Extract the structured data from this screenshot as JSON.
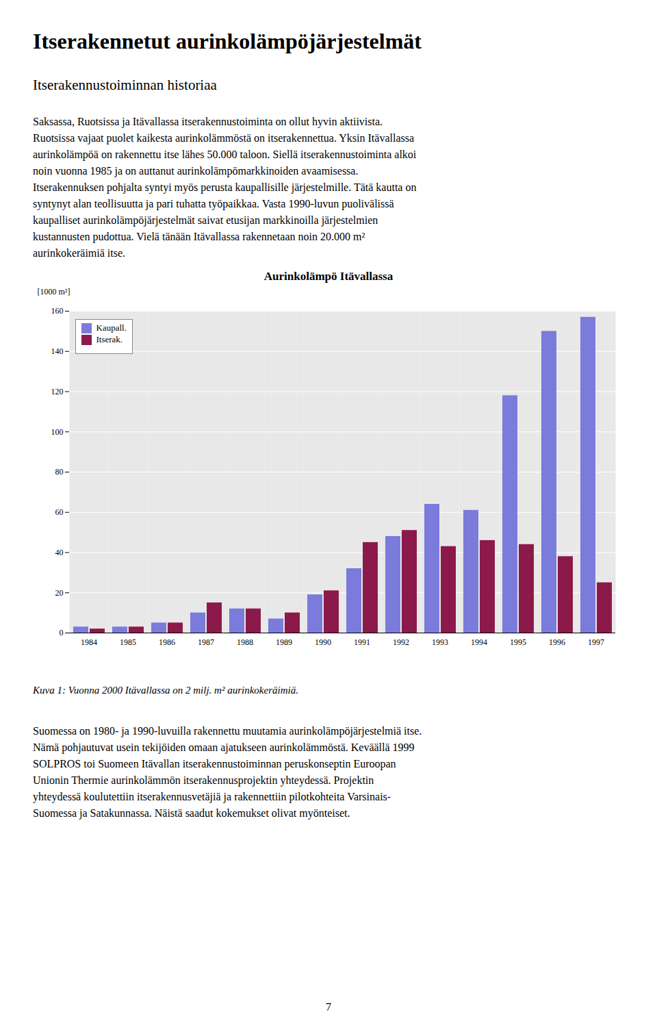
{
  "title": "Itserakennetut aurinkolämpöjärjestelmät",
  "subtitle": "Itserakennustoiminnan historiaa",
  "paragraph_before": [
    "Saksassa, Ruotsissa ja Itävallassa itserakennustoiminta on ollut hyvin aktiivista.",
    "Ruotsissa vajaat puolet kaikesta aurinkolämmöstä on itserakennettua. Yksin Itävallassa",
    "aurinkolämpöä on rakennettu itse lähes 50.000 taloon. Siellä itserakennustoiminta alkoi",
    "noin vuonna 1985 ja on auttanut aurinkolämpömarkkinoiden avaamisessa.",
    "Itserakennuksen pohjalta syntyi myös perusta kaupallisille järjestelmille. Tätä kautta on",
    "syntynyt alan teollisuutta ja pari tuhatta työpaikkaa. Vasta 1990-luvun puolivälissä",
    "kaupalliset aurinkolämpöjärjestelmät saivat etusijan markkinoilla järjestelmien",
    "kustannusten pudottua. Vielä tänään Itävallassa rakennetaan noin 20.000 m²",
    "aurinkokeräimiä itse."
  ],
  "caption": "Kuva 1: Vuonna 2000 Itävallassa on 2 milj. m² aurinkokeräimiä.",
  "paragraph_after": [
    "Suomessa on 1980- ja 1990-luvuilla rakennettu muutamia aurinkolämpöjärjestelmiä itse.",
    "Nämä pohjautuvat usein tekijöiden omaan ajatukseen aurinkolämmöstä. Keväällä 1999",
    "SOLPROS toi Suomeen Itävallan itserakennustoiminnan peruskonseptin Euroopan",
    "Unionin Thermie aurinkolämmön itserakennusprojektin yhteydessä. Projektin",
    "yhteydessä koulutettiin itserakennusvetäjiä ja rakennettiin pilotkohteita Varsinais-",
    "Suomessa ja Satakunnassa. Näistä saadut kokemukset olivat myönteiset."
  ],
  "page_number": "7",
  "chart_data": {
    "type": "bar",
    "title": "Aurinkolämpö Itävallassa",
    "ylabel": "[1000 m²]",
    "categories": [
      "1984",
      "1985",
      "1986",
      "1987",
      "1988",
      "1989",
      "1990",
      "1991",
      "1992",
      "1993",
      "1994",
      "1995",
      "1996",
      "1997"
    ],
    "series": [
      {
        "name": "Kaupall.",
        "color": "#7b7bdb",
        "values": [
          3,
          3,
          5,
          10,
          12,
          7,
          19,
          32,
          48,
          64,
          61,
          118,
          150,
          157
        ]
      },
      {
        "name": "Itserak.",
        "color": "#8b1a4a",
        "values": [
          2,
          3,
          5,
          15,
          12,
          10,
          21,
          45,
          51,
          43,
          46,
          44,
          38,
          25
        ]
      }
    ],
    "ylim": [
      0,
      160
    ],
    "yticks": [
      0,
      20,
      40,
      60,
      80,
      100,
      120,
      140,
      160
    ],
    "grid": true,
    "legend": "upper left"
  }
}
